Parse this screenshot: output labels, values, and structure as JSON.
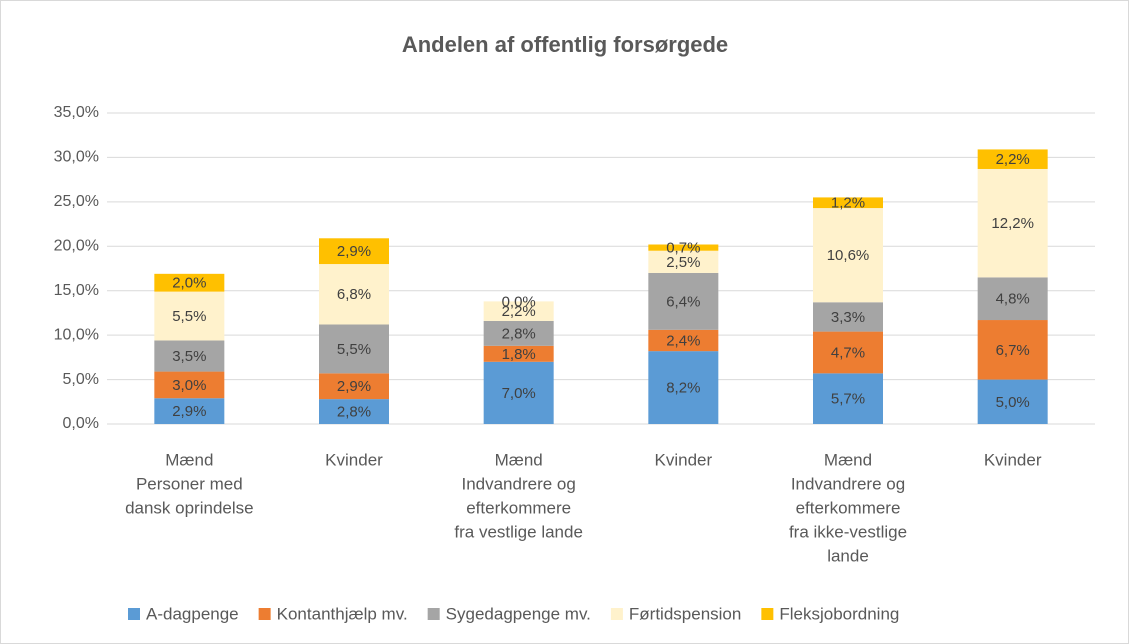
{
  "chart_data": {
    "type": "stacked_bar",
    "title": "Andelen af offentlig forsørgede",
    "categories": [
      "Mænd",
      "Kvinder",
      "Mænd",
      "Kvinder",
      "Mænd",
      "Kvinder"
    ],
    "groups": [
      [
        "Personer med",
        "dansk oprindelse"
      ],
      [
        "Indvandrere og",
        "efterkommere",
        "fra vestlige lande"
      ],
      [
        "Indvandrere og",
        "efterkommere",
        "fra ikke-vestlige",
        "lande"
      ]
    ],
    "series": [
      {
        "name": "A-dagpenge",
        "color": "#5b9bd5",
        "values": [
          2.9,
          2.8,
          7.0,
          8.2,
          5.7,
          5.0
        ],
        "value_labels": [
          "2,9%",
          "2,8%",
          "7,0%",
          "8,2%",
          "5,7%",
          "5,0%"
        ]
      },
      {
        "name": "Kontanthjælp mv.",
        "color": "#ed7d31",
        "values": [
          3.0,
          2.9,
          1.8,
          2.4,
          4.7,
          6.7
        ],
        "value_labels": [
          "3,0%",
          "2,9%",
          "1,8%",
          "2,4%",
          "4,7%",
          "6,7%"
        ]
      },
      {
        "name": "Sygedagpenge mv.",
        "color": "#a5a5a5",
        "values": [
          3.5,
          5.5,
          2.8,
          6.4,
          3.3,
          4.8
        ],
        "value_labels": [
          "3,5%",
          "5,5%",
          "2,8%",
          "6,4%",
          "3,3%",
          "4,8%"
        ]
      },
      {
        "name": "Førtidspension",
        "color": "#fff2cc",
        "values": [
          5.5,
          6.8,
          2.2,
          2.5,
          10.6,
          12.2
        ],
        "value_labels": [
          "5,5%",
          "6,8%",
          "2,2%",
          "2,5%",
          "10,6%",
          "12,2%"
        ]
      },
      {
        "name": "Fleksjobordning",
        "color": "#ffc000",
        "values": [
          2.0,
          2.9,
          0.0,
          0.7,
          1.2,
          2.2
        ],
        "value_labels": [
          "2,0%",
          "2,9%",
          "0,0%",
          "0,7%",
          "1,2%",
          "2,2%"
        ]
      }
    ],
    "ylim": [
      0,
      35
    ],
    "yticks": [
      {
        "value": 0,
        "label": "0,0%"
      },
      {
        "value": 5,
        "label": "5,0%"
      },
      {
        "value": 10,
        "label": "10,0%"
      },
      {
        "value": 15,
        "label": "15,0%"
      },
      {
        "value": 20,
        "label": "20,0%"
      },
      {
        "value": 25,
        "label": "25,0%"
      },
      {
        "value": 30,
        "label": "30,0%"
      },
      {
        "value": 35,
        "label": "35,0%"
      }
    ],
    "grid": true,
    "legend": "bottom"
  }
}
